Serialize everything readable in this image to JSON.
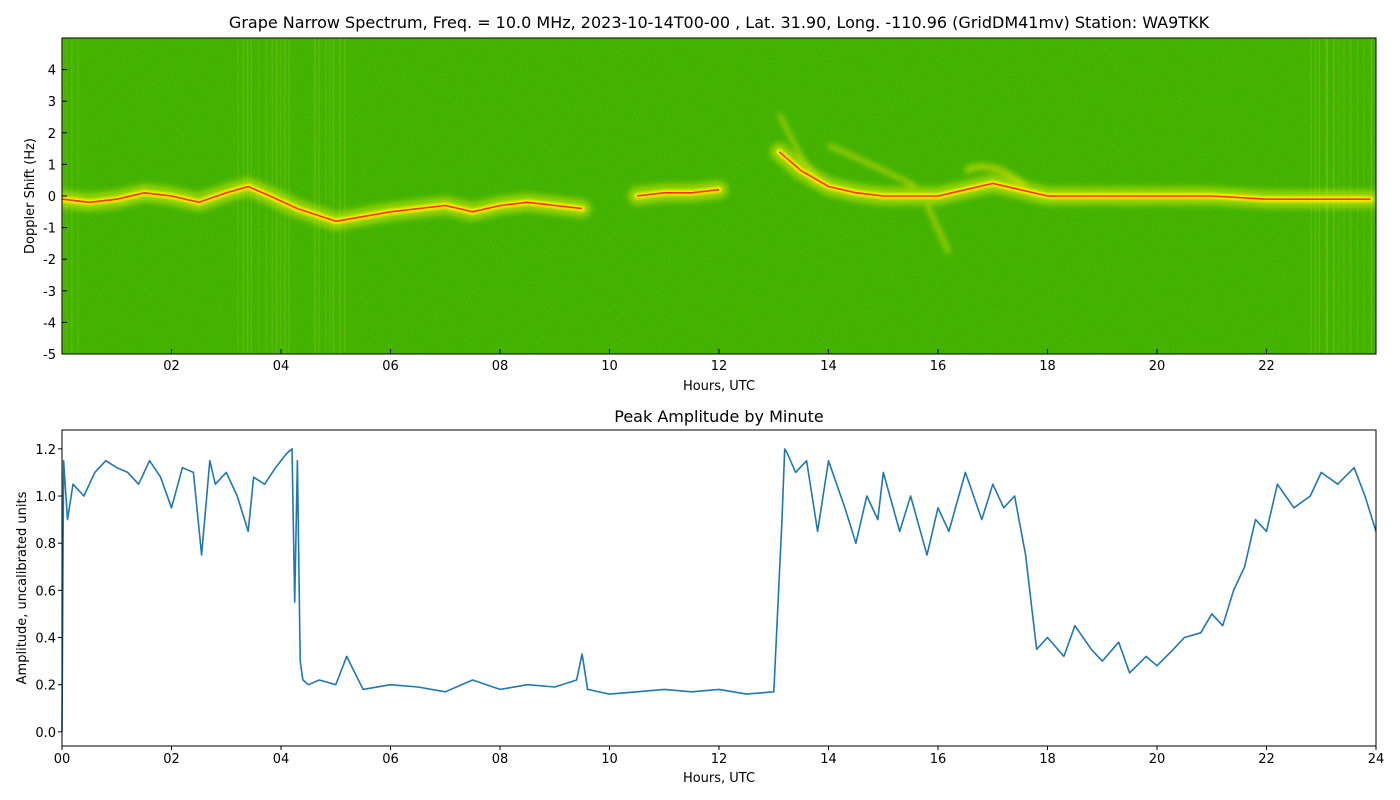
{
  "chart_data": [
    {
      "type": "heatmap",
      "title": "Grape Narrow Spectrum, Freq. = 10.0 MHz, 2023-10-14T00-00 , Lat.  31.90, Long. -110.96 (GridDM41mv) Station: WA9TKK",
      "xlabel": "Hours, UTC",
      "ylabel": "Doppler Shift (Hz)",
      "xlim": [
        0,
        24
      ],
      "ylim": [
        -5,
        5
      ],
      "x_ticks": [
        "02",
        "04",
        "06",
        "08",
        "10",
        "12",
        "14",
        "16",
        "18",
        "20",
        "22"
      ],
      "y_ticks": [
        "-5",
        "-4",
        "-3",
        "-2",
        "-1",
        "0",
        "1",
        "2",
        "3",
        "4"
      ],
      "colors": {
        "background": "#1e8c00",
        "trace": "#ffee00",
        "peak": "#ff3300"
      },
      "doppler_trace": {
        "hours": [
          0.0,
          0.5,
          1.0,
          1.5,
          2.0,
          2.5,
          3.0,
          3.4,
          3.8,
          4.3,
          5.0,
          6.0,
          7.0,
          7.5,
          8.0,
          8.5,
          9.0,
          9.5,
          10.0,
          10.5,
          11.0,
          11.5,
          12.0,
          12.5,
          13.0,
          13.1,
          13.5,
          14.0,
          14.5,
          15.0,
          15.5,
          16.0,
          16.5,
          17.0,
          17.5,
          18.0,
          19.0,
          20.0,
          21.0,
          22.0,
          23.0,
          23.9
        ],
        "shift_hz": [
          -0.1,
          -0.2,
          -0.1,
          0.1,
          0.0,
          -0.2,
          0.1,
          0.3,
          0.0,
          -0.4,
          -0.8,
          -0.5,
          -0.3,
          -0.5,
          -0.3,
          -0.2,
          -0.3,
          -0.4,
          null,
          0.0,
          0.1,
          0.1,
          0.2,
          null,
          null,
          1.4,
          0.8,
          0.3,
          0.1,
          0.0,
          0.0,
          0.0,
          0.2,
          0.4,
          0.2,
          0.0,
          0.0,
          0.0,
          0.0,
          -0.1,
          -0.1,
          -0.1
        ]
      }
    },
    {
      "type": "line",
      "title": "Peak Amplitude by Minute",
      "xlabel": "Hours, UTC",
      "ylabel": "Amplitude, uncalibrated units",
      "xlim": [
        0,
        24
      ],
      "ylim": [
        -0.06,
        1.28
      ],
      "x_ticks": [
        "00",
        "02",
        "04",
        "06",
        "08",
        "10",
        "12",
        "14",
        "16",
        "18",
        "20",
        "22",
        "24"
      ],
      "y_ticks": [
        "0.0",
        "0.2",
        "0.4",
        "0.6",
        "0.8",
        "1.0",
        "1.2"
      ],
      "line_color": "#1f77b4",
      "series": [
        {
          "x": [
            0.0,
            0.03,
            0.1,
            0.2,
            0.4,
            0.6,
            0.8,
            1.0,
            1.2,
            1.4,
            1.6,
            1.8,
            2.0,
            2.2,
            2.4,
            2.55,
            2.7,
            2.8,
            3.0,
            3.2,
            3.4,
            3.5,
            3.7,
            3.9,
            4.1,
            4.2,
            4.25,
            4.3,
            4.35,
            4.4,
            4.5,
            4.7,
            5.0,
            5.2,
            5.5,
            6.0,
            6.5,
            7.0,
            7.5,
            8.0,
            8.5,
            9.0,
            9.4,
            9.5,
            9.6,
            10.0,
            10.5,
            11.0,
            11.5,
            12.0,
            12.5,
            13.0,
            13.15,
            13.2,
            13.25,
            13.4,
            13.6,
            13.8,
            14.0,
            14.3,
            14.5,
            14.7,
            14.9,
            15.0,
            15.3,
            15.5,
            15.8,
            16.0,
            16.2,
            16.5,
            16.8,
            17.0,
            17.2,
            17.4,
            17.6,
            17.7,
            17.8,
            18.0,
            18.3,
            18.5,
            18.8,
            19.0,
            19.3,
            19.5,
            19.8,
            20.0,
            20.3,
            20.5,
            20.8,
            21.0,
            21.2,
            21.4,
            21.6,
            21.8,
            22.0,
            22.2,
            22.5,
            22.8,
            23.0,
            23.3,
            23.6,
            23.8,
            24.0
          ],
          "y": [
            0.0,
            1.15,
            0.9,
            1.05,
            1.0,
            1.1,
            1.15,
            1.12,
            1.1,
            1.05,
            1.15,
            1.08,
            0.95,
            1.12,
            1.1,
            0.75,
            1.15,
            1.05,
            1.1,
            1.0,
            0.85,
            1.08,
            1.05,
            1.12,
            1.18,
            1.2,
            0.55,
            1.15,
            0.3,
            0.22,
            0.2,
            0.22,
            0.2,
            0.32,
            0.18,
            0.2,
            0.19,
            0.17,
            0.22,
            0.18,
            0.2,
            0.19,
            0.22,
            0.33,
            0.18,
            0.16,
            0.17,
            0.18,
            0.17,
            0.18,
            0.16,
            0.17,
            0.9,
            1.2,
            1.18,
            1.1,
            1.15,
            0.85,
            1.15,
            0.95,
            0.8,
            1.0,
            0.9,
            1.1,
            0.85,
            1.0,
            0.75,
            0.95,
            0.85,
            1.1,
            0.9,
            1.05,
            0.95,
            1.0,
            0.75,
            0.55,
            0.35,
            0.4,
            0.32,
            0.45,
            0.35,
            0.3,
            0.38,
            0.25,
            0.32,
            0.28,
            0.35,
            0.4,
            0.42,
            0.5,
            0.45,
            0.6,
            0.7,
            0.9,
            0.85,
            1.05,
            0.95,
            1.0,
            1.1,
            1.05,
            1.12,
            1.0,
            0.85
          ]
        }
      ]
    }
  ]
}
